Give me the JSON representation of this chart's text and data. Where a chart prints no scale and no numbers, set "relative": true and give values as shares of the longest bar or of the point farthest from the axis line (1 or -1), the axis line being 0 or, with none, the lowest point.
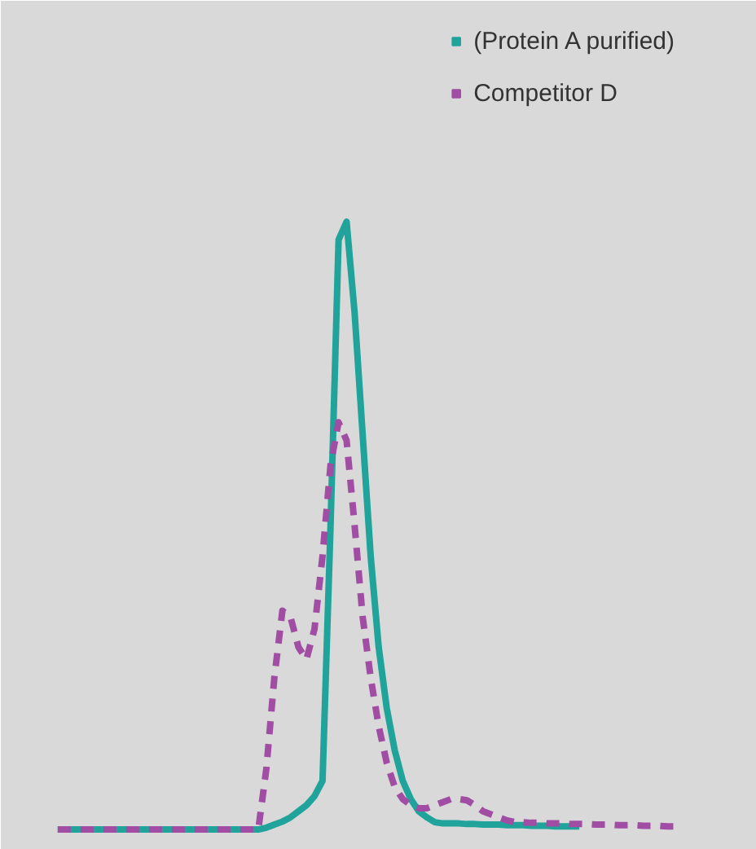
{
  "chart_data": {
    "type": "line",
    "relative": true,
    "legend": "top right",
    "grid": false,
    "marker": "none",
    "categories": [
      null,
      null,
      null,
      null,
      null,
      null,
      null,
      null,
      null,
      null,
      null,
      null,
      null,
      null,
      null,
      null,
      null,
      null,
      null,
      null,
      null,
      null,
      null,
      null,
      null,
      null,
      null,
      null,
      null,
      null,
      null,
      null,
      null,
      null,
      null,
      null,
      null,
      null,
      null,
      null,
      null,
      null,
      null,
      null,
      null,
      null,
      null,
      null,
      null,
      null,
      null,
      null,
      null,
      null,
      null,
      null,
      null,
      null,
      null,
      null,
      null,
      null,
      null,
      null,
      null,
      null,
      null,
      null,
      null,
      null,
      null,
      null,
      null,
      null,
      null,
      null,
      null,
      null
    ],
    "series": [
      {
        "name": "(Protein A purified)",
        "color": "#1fa39a",
        "line_style": "solid",
        "values": [
          0,
          0,
          0,
          0,
          0,
          0,
          0,
          0,
          0,
          0,
          0,
          0,
          0,
          0,
          0,
          0,
          0,
          0,
          0,
          0,
          0,
          0,
          0,
          0,
          0,
          0,
          0.003,
          0.008,
          0.013,
          0.02,
          0.03,
          0.04,
          0.055,
          0.08,
          0.5,
          0.97,
          1.0,
          0.85,
          0.65,
          0.45,
          0.3,
          0.2,
          0.13,
          0.08,
          0.05,
          0.03,
          0.02,
          0.012,
          0.01,
          0.01,
          0.01,
          0.009,
          0.009,
          0.008,
          0.008,
          0.008,
          0.007,
          0.007,
          0.007,
          0.006,
          0.006,
          0.006,
          0.005,
          0.005,
          0.005,
          0.005,
          null,
          null,
          null,
          null,
          null,
          null,
          null,
          null,
          null,
          null,
          null,
          null
        ]
      },
      {
        "name": "Competitor D",
        "color": "#a04da3",
        "line_style": "dashed",
        "values": [
          0,
          0,
          0,
          0,
          0,
          0,
          0,
          0,
          0,
          0,
          0,
          0,
          0,
          0,
          0,
          0,
          0,
          0,
          0,
          0,
          0,
          0,
          0,
          0,
          0,
          0,
          0.1,
          0.25,
          0.36,
          0.35,
          0.3,
          0.28,
          0.33,
          0.45,
          0.6,
          0.67,
          0.64,
          0.5,
          0.35,
          0.25,
          0.17,
          0.11,
          0.07,
          0.05,
          0.04,
          0.035,
          0.035,
          0.04,
          0.045,
          0.05,
          0.05,
          0.048,
          0.04,
          0.03,
          0.025,
          0.02,
          0.015,
          0.012,
          0.012,
          0.011,
          0.011,
          0.01,
          0.01,
          0.01,
          0.009,
          0.009,
          0.009,
          0.008,
          0.008,
          0.008,
          0.007,
          0.007,
          0.007,
          0.006,
          0.006,
          0.006,
          0.005,
          0.005
        ]
      }
    ]
  }
}
